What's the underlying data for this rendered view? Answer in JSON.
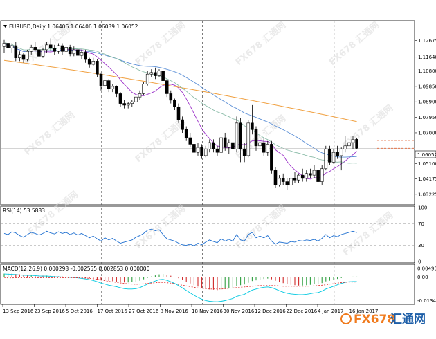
{
  "colors": {
    "background": "#ffffff",
    "bull": "#ffffff",
    "bear": "#000000",
    "ma_fast": "#9b30c8",
    "ma_mid": "#5b8fd6",
    "ma_slow": "#7fb5a0",
    "ma_long": "#f0a040",
    "rsi": "#1e6fd0",
    "macd_up": "#2e9e3e",
    "macd_down": "#d02828",
    "macd_line": "#00c8e0",
    "signal_line": "#e03030",
    "level_line": "#e06030",
    "brand_orange": "#f07b1e",
    "brand_blue": "#1e5fa8"
  },
  "chart_data": [
    {
      "type": "candlestick",
      "header": "EURUSD,Daily  1.06406 1.06406 1.06039 1.06052",
      "current_price_label": "1.06052",
      "y_ticks": [
        "1.12675",
        "1.11640",
        "1.10800",
        "1.09850",
        "1.08900",
        "1.07950",
        "1.07000",
        "1.06052",
        "1.05100",
        "1.04175",
        "1.03225"
      ],
      "x_ticks": [
        "13 Sep 2016",
        "23 Sep 2016",
        "5 Oct 2016",
        "17 Oct 2016",
        "27 Oct 2016",
        "8 Nov 2016",
        "18 Nov 2016",
        "30 Nov 2016",
        "12 Dec 2016",
        "22 Dec 2016",
        "4 Jan 2017",
        "16 Jan 2017"
      ],
      "ylim": [
        1.0275,
        1.132
      ],
      "vertical_separators": [
        23,
        49,
        83,
        117
      ],
      "candles": [
        [
          1.123,
          1.127,
          1.119,
          1.125
        ],
        [
          1.125,
          1.128,
          1.12,
          1.122
        ],
        [
          1.122,
          1.125,
          1.119,
          1.1235
        ],
        [
          1.1235,
          1.126,
          1.114,
          1.116
        ],
        [
          1.116,
          1.12,
          1.114,
          1.118
        ],
        [
          1.118,
          1.119,
          1.113,
          1.115
        ],
        [
          1.115,
          1.121,
          1.114,
          1.12
        ],
        [
          1.12,
          1.124,
          1.118,
          1.1225
        ],
        [
          1.1225,
          1.126,
          1.12,
          1.121
        ],
        [
          1.121,
          1.123,
          1.115,
          1.117
        ],
        [
          1.117,
          1.122,
          1.116,
          1.121
        ],
        [
          1.121,
          1.126,
          1.119,
          1.124
        ],
        [
          1.124,
          1.128,
          1.12,
          1.122
        ],
        [
          1.122,
          1.124,
          1.118,
          1.12
        ],
        [
          1.12,
          1.125,
          1.1185,
          1.1235
        ],
        [
          1.1235,
          1.125,
          1.118,
          1.12
        ],
        [
          1.12,
          1.124,
          1.119,
          1.1225
        ],
        [
          1.1225,
          1.124,
          1.117,
          1.1185
        ],
        [
          1.1185,
          1.123,
          1.117,
          1.121
        ],
        [
          1.121,
          1.1225,
          1.116,
          1.1175
        ],
        [
          1.1175,
          1.121,
          1.115,
          1.1195
        ],
        [
          1.1195,
          1.121,
          1.113,
          1.115
        ],
        [
          1.115,
          1.116,
          1.11,
          1.112
        ],
        [
          1.112,
          1.116,
          1.111,
          1.114
        ],
        [
          1.114,
          1.115,
          1.104,
          1.106
        ],
        [
          1.106,
          1.107,
          1.096,
          1.099
        ],
        [
          1.099,
          1.104,
          1.098,
          1.102
        ],
        [
          1.102,
          1.103,
          1.095,
          1.097
        ],
        [
          1.097,
          1.1,
          1.095,
          1.0985
        ],
        [
          1.0985,
          1.099,
          1.092,
          1.094
        ],
        [
          1.094,
          1.095,
          1.086,
          1.088
        ],
        [
          1.088,
          1.09,
          1.085,
          1.087
        ],
        [
          1.087,
          1.089,
          1.085,
          1.088
        ],
        [
          1.088,
          1.09,
          1.086,
          1.089
        ],
        [
          1.089,
          1.093,
          1.087,
          1.092
        ],
        [
          1.092,
          1.096,
          1.09,
          1.094
        ],
        [
          1.094,
          1.101,
          1.093,
          1.1
        ],
        [
          1.1,
          1.108,
          1.099,
          1.106
        ],
        [
          1.106,
          1.109,
          1.104,
          1.107
        ],
        [
          1.107,
          1.11,
          1.103,
          1.105
        ],
        [
          1.105,
          1.109,
          1.104,
          1.108
        ],
        [
          1.108,
          1.13,
          1.1,
          1.102
        ],
        [
          1.102,
          1.103,
          1.092,
          1.094
        ],
        [
          1.094,
          1.096,
          1.088,
          1.09
        ],
        [
          1.09,
          1.091,
          1.084,
          1.086
        ],
        [
          1.086,
          1.088,
          1.076,
          1.078
        ],
        [
          1.078,
          1.08,
          1.07,
          1.072
        ],
        [
          1.072,
          1.074,
          1.065,
          1.067
        ],
        [
          1.067,
          1.07,
          1.061,
          1.063
        ],
        [
          1.063,
          1.066,
          1.056,
          1.058
        ],
        [
          1.058,
          1.064,
          1.056,
          1.061
        ],
        [
          1.061,
          1.063,
          1.054,
          1.056
        ],
        [
          1.056,
          1.062,
          1.055,
          1.06
        ],
        [
          1.06,
          1.066,
          1.058,
          1.064
        ],
        [
          1.064,
          1.066,
          1.058,
          1.06
        ],
        [
          1.06,
          1.062,
          1.056,
          1.058
        ],
        [
          1.058,
          1.069,
          1.057,
          1.067
        ],
        [
          1.067,
          1.07,
          1.059,
          1.061
        ],
        [
          1.061,
          1.066,
          1.057,
          1.064
        ],
        [
          1.064,
          1.067,
          1.058,
          1.06
        ],
        [
          1.06,
          1.08,
          1.058,
          1.076
        ],
        [
          1.076,
          1.079,
          1.052,
          1.06
        ],
        [
          1.06,
          1.064,
          1.052,
          1.056
        ],
        [
          1.056,
          1.078,
          1.055,
          1.076
        ],
        [
          1.076,
          1.087,
          1.069,
          1.072
        ],
        [
          1.072,
          1.074,
          1.059,
          1.062
        ],
        [
          1.062,
          1.066,
          1.055,
          1.064
        ],
        [
          1.064,
          1.067,
          1.056,
          1.058
        ],
        [
          1.058,
          1.065,
          1.056,
          1.063
        ],
        [
          1.063,
          1.065,
          1.045,
          1.047
        ],
        [
          1.047,
          1.049,
          1.036,
          1.038
        ],
        [
          1.038,
          1.044,
          1.037,
          1.042
        ],
        [
          1.042,
          1.045,
          1.038,
          1.04
        ],
        [
          1.04,
          1.042,
          1.035,
          1.038
        ],
        [
          1.038,
          1.044,
          1.036,
          1.042
        ],
        [
          1.042,
          1.046,
          1.039,
          1.041
        ],
        [
          1.041,
          1.045,
          1.039,
          1.044
        ],
        [
          1.044,
          1.048,
          1.04,
          1.042
        ],
        [
          1.042,
          1.047,
          1.04,
          1.045
        ],
        [
          1.045,
          1.048,
          1.042,
          1.044
        ],
        [
          1.044,
          1.05,
          1.042,
          1.047
        ],
        [
          1.047,
          1.052,
          1.033,
          1.04
        ],
        [
          1.04,
          1.05,
          1.038,
          1.048
        ],
        [
          1.048,
          1.062,
          1.047,
          1.06
        ],
        [
          1.06,
          1.062,
          1.05,
          1.052
        ],
        [
          1.052,
          1.06,
          1.051,
          1.058
        ],
        [
          1.058,
          1.062,
          1.054,
          1.056
        ],
        [
          1.056,
          1.061,
          1.047,
          1.06
        ],
        [
          1.06,
          1.068,
          1.058,
          1.062
        ],
        [
          1.062,
          1.07,
          1.059,
          1.064
        ],
        [
          1.064,
          1.068,
          1.06,
          1.066
        ],
        [
          1.066,
          1.067,
          1.06,
          1.0605
        ]
      ],
      "ma_slow_level": [
        1.106,
        1.046
      ],
      "price_dashes": [
        1.0653,
        1.0605
      ]
    },
    {
      "type": "line",
      "header": "RSI(14) 53.5883",
      "ylim": [
        0,
        100
      ],
      "y_ticks": [
        "100",
        "70",
        "30",
        "0"
      ],
      "levels": [
        70,
        30
      ],
      "values": [
        52,
        50,
        55,
        53,
        48,
        45,
        50,
        54,
        52,
        49,
        52,
        56,
        53,
        51,
        55,
        52,
        54,
        50,
        53,
        49,
        52,
        48,
        44,
        47,
        42,
        38,
        44,
        40,
        43,
        38,
        34,
        36,
        38,
        40,
        45,
        48,
        52,
        58,
        60,
        57,
        59,
        50,
        42,
        40,
        38,
        34,
        31,
        30,
        32,
        29,
        34,
        31,
        36,
        40,
        37,
        35,
        42,
        38,
        41,
        38,
        50,
        40,
        38,
        50,
        54,
        44,
        47,
        44,
        48,
        38,
        32,
        36,
        35,
        34,
        37,
        36,
        39,
        38,
        40,
        39,
        41,
        38,
        43,
        50,
        44,
        48,
        46,
        50,
        52,
        54,
        56,
        53.6
      ]
    },
    {
      "type": "bar",
      "header": "MACD(12,26,9) 0.000298 -0.002555 0.002853 0.000000",
      "ylim": [
        -0.0148,
        0.0058
      ],
      "y_ticks": [
        "0.004956",
        "0.00",
        "-0.013452"
      ],
      "histogram": [
        0.002,
        0.0021,
        0.002,
        0.0018,
        0.0016,
        0.0014,
        0.0013,
        0.0013,
        0.0012,
        0.001,
        0.0009,
        0.0009,
        0.0008,
        0.0006,
        0.0005,
        0.0004,
        0.0003,
        0.0002,
        0.0001,
        -0.0001,
        -0.0003,
        -0.0005,
        -0.0007,
        -0.001,
        -0.0014,
        -0.0018,
        -0.002,
        -0.0022,
        -0.0023,
        -0.0025,
        -0.0028,
        -0.003,
        -0.003,
        -0.0028,
        -0.0025,
        -0.002,
        -0.0012,
        -0.0004,
        0.0004,
        0.001,
        0.0016,
        0.0018,
        0.0014,
        0.0008,
        0.0002,
        -0.0006,
        -0.0016,
        -0.0026,
        -0.0036,
        -0.0046,
        -0.0054,
        -0.0062,
        -0.0068,
        -0.007,
        -0.0072,
        -0.0074,
        -0.007,
        -0.0068,
        -0.0064,
        -0.006,
        -0.005,
        -0.0046,
        -0.0042,
        -0.0032,
        -0.0022,
        -0.0018,
        -0.0014,
        -0.001,
        -0.0008,
        -0.0012,
        -0.002,
        -0.0028,
        -0.0034,
        -0.004,
        -0.0044,
        -0.0046,
        -0.0048,
        -0.0048,
        -0.0046,
        -0.0044,
        -0.004,
        -0.004,
        -0.0034,
        -0.0024,
        -0.002,
        -0.0014,
        -0.001,
        -0.0005,
        -0.0001,
        0.0002,
        0.0003,
        0.0003
      ],
      "macd_line": [
        0.0018,
        0.0017,
        0.0016,
        0.0015,
        0.0013,
        0.0011,
        0.001,
        0.001,
        0.0009,
        0.0007,
        0.0006,
        0.0006,
        0.0005,
        0.0003,
        0.0002,
        0.0001,
        0.0,
        -0.0001,
        -0.0002,
        -0.0004,
        -0.0007,
        -0.001,
        -0.0014,
        -0.0019,
        -0.0026,
        -0.0034,
        -0.004,
        -0.0046,
        -0.005,
        -0.0055,
        -0.0061,
        -0.0066,
        -0.0068,
        -0.0068,
        -0.0066,
        -0.006,
        -0.005,
        -0.004,
        -0.003,
        -0.0022,
        -0.0014,
        -0.0012,
        -0.0018,
        -0.0026,
        -0.0036,
        -0.0048,
        -0.0062,
        -0.0076,
        -0.009,
        -0.0104,
        -0.0116,
        -0.0126,
        -0.0134,
        -0.0138,
        -0.014,
        -0.0141,
        -0.0138,
        -0.0134,
        -0.0128,
        -0.0122,
        -0.011,
        -0.0104,
        -0.0098,
        -0.0086,
        -0.0074,
        -0.0068,
        -0.0062,
        -0.0058,
        -0.0056,
        -0.006,
        -0.0068,
        -0.0078,
        -0.0086,
        -0.0092,
        -0.0096,
        -0.0098,
        -0.01,
        -0.01,
        -0.0098,
        -0.0095,
        -0.009,
        -0.0088,
        -0.008,
        -0.0068,
        -0.006,
        -0.0052,
        -0.0044,
        -0.0036,
        -0.003,
        -0.0026,
        -0.0025,
        -0.0025
      ],
      "signal_line": [
        -0.0002,
        -0.0004,
        -0.0004,
        -0.0003,
        -0.0003,
        -0.0003,
        -0.0003,
        -0.0003,
        -0.0003,
        -0.0003,
        -0.0003,
        -0.0003,
        -0.0003,
        -0.0003,
        -0.0003,
        -0.0003,
        -0.0003,
        -0.0003,
        -0.0003,
        -0.0003,
        -0.0004,
        -0.0005,
        -0.0007,
        -0.0009,
        -0.0012,
        -0.0016,
        -0.002,
        -0.0024,
        -0.0027,
        -0.003,
        -0.0033,
        -0.0036,
        -0.0038,
        -0.004,
        -0.0041,
        -0.004,
        -0.0038,
        -0.0036,
        -0.0034,
        -0.0032,
        -0.003,
        -0.003,
        -0.0032,
        -0.0034,
        -0.0038,
        -0.0042,
        -0.0046,
        -0.005,
        -0.0054,
        -0.0058,
        -0.0062,
        -0.0064,
        -0.0066,
        -0.0068,
        -0.0068,
        -0.0067,
        -0.0068,
        -0.0066,
        -0.0064,
        -0.0062,
        -0.006,
        -0.0058,
        -0.0056,
        -0.0054,
        -0.0052,
        -0.005,
        -0.0048,
        -0.0048,
        -0.0048,
        -0.0048,
        -0.0048,
        -0.005,
        -0.0052,
        -0.0052,
        -0.0052,
        -0.0052,
        -0.0052,
        -0.0052,
        -0.0052,
        -0.0051,
        -0.005,
        -0.0048,
        -0.0046,
        -0.0044,
        -0.004,
        -0.0038,
        -0.0034,
        -0.0031,
        -0.0029,
        -0.0028,
        -0.0028,
        -0.0028
      ]
    }
  ],
  "watermark": {
    "text": "FX678 汇通网"
  },
  "brand": {
    "part1": "FX678",
    "part2": "汇通网"
  }
}
